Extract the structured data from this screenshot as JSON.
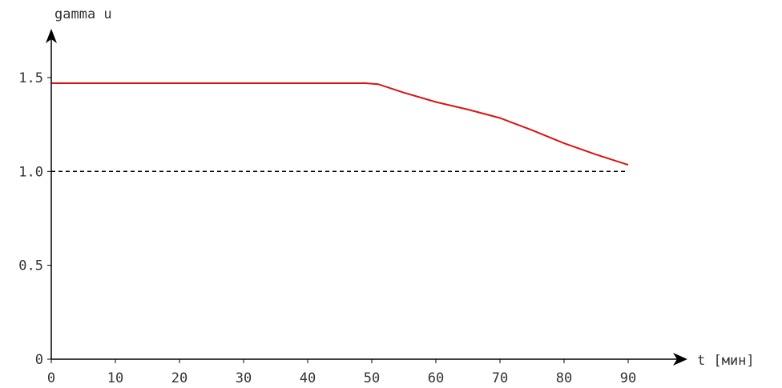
{
  "chart_data": {
    "type": "line",
    "ylabel": "gamma u",
    "xlabel": "t [мин]",
    "xlim": [
      0,
      90
    ],
    "ylim": [
      0,
      1.75
    ],
    "x_ticks": [
      "0",
      "10",
      "20",
      "30",
      "40",
      "50",
      "60",
      "70",
      "80",
      "90"
    ],
    "y_ticks": [
      "0",
      "0.5",
      "1.0",
      "1.5"
    ],
    "grid": false,
    "series": [
      {
        "color": "#dd1111",
        "style": "solid",
        "x": [
          0,
          49,
          51,
          55,
          60,
          65,
          70,
          75,
          80,
          85,
          90
        ],
        "y": [
          1.47,
          1.47,
          1.465,
          1.42,
          1.37,
          1.33,
          1.285,
          1.22,
          1.15,
          1.09,
          1.035
        ]
      },
      {
        "color": "#000000",
        "style": "dashed",
        "x": [
          0,
          90
        ],
        "y": [
          1.0,
          1.0
        ]
      }
    ]
  }
}
